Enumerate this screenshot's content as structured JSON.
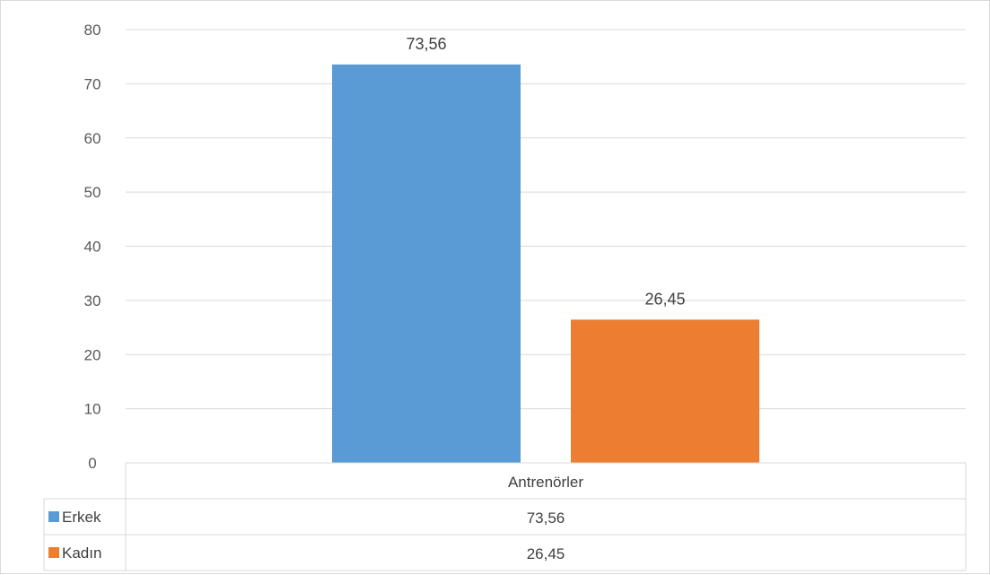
{
  "chart_data": {
    "type": "bar",
    "categories": [
      "Antrenörler"
    ],
    "series": [
      {
        "name": "Erkek",
        "values": [
          73.56
        ],
        "label": "73,56",
        "color": "#5b9bd5"
      },
      {
        "name": "Kadın",
        "values": [
          26.45
        ],
        "label": "26,45",
        "color": "#ed7d31"
      }
    ],
    "ylim": [
      0,
      80
    ],
    "yticks": [
      0,
      10,
      20,
      30,
      40,
      50,
      60,
      70,
      80
    ],
    "grid": true,
    "legend": "data-table-bottom"
  }
}
